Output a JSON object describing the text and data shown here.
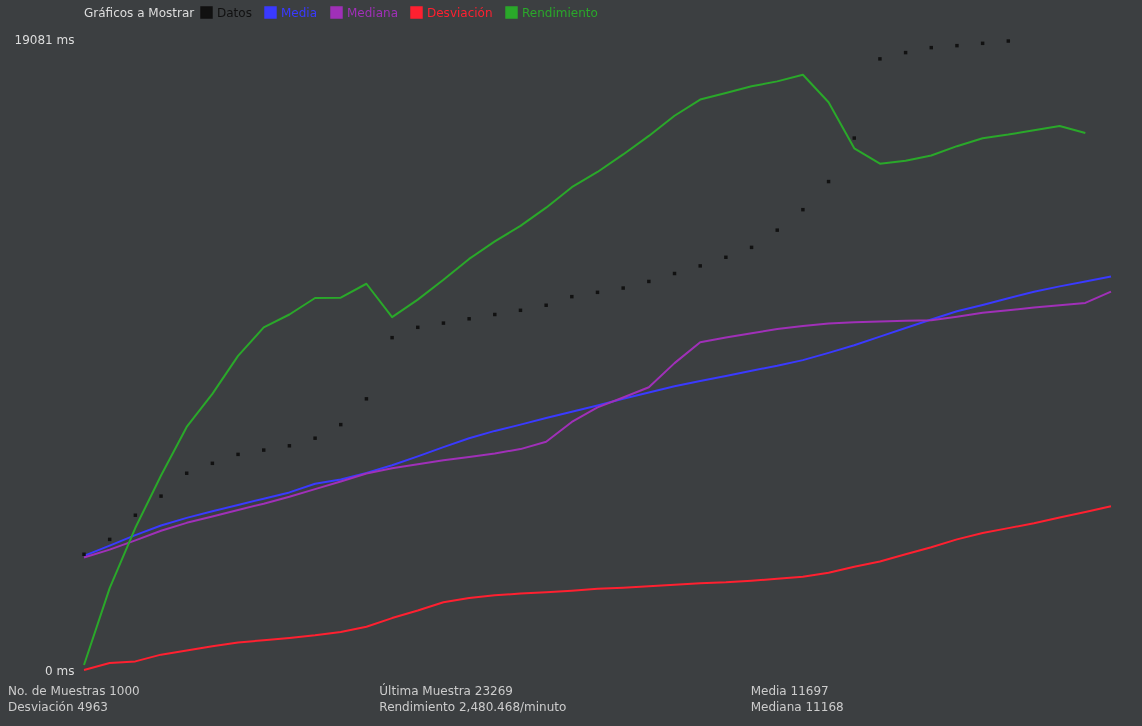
{
  "chart_data": {
    "type": "line",
    "legend_title": "Gráficos a Mostrar",
    "legend": "top",
    "categories": [
      null,
      null,
      null,
      null,
      null,
      null,
      null,
      null,
      null,
      null,
      null,
      null,
      null,
      null,
      null,
      null,
      null,
      null,
      null,
      null,
      null,
      null,
      null,
      null,
      null,
      null,
      null,
      null,
      null,
      null,
      null,
      null,
      null,
      null,
      null,
      null,
      null,
      null,
      null,
      null,
      null
    ],
    "ylim": [
      0,
      19081
    ],
    "yticks": [
      {
        "value": 0,
        "label": "0  ms"
      },
      {
        "value": 19081,
        "label": "19081  ms"
      }
    ],
    "tick_labels": "y",
    "grid": false,
    "series": [
      {
        "name": "Datos",
        "type": "scatter",
        "marker": "square",
        "color": "#111111",
        "values": [
          3500,
          3950,
          4680,
          5258,
          5950,
          6250,
          6520,
          6650,
          6780,
          7010,
          7420,
          8200,
          10050,
          10362,
          10490,
          10620,
          10750,
          10877,
          11030,
          11290,
          11420,
          11550,
          11750,
          11990,
          12220,
          12480,
          12780,
          13301,
          13920,
          14770,
          16085,
          18480,
          18670,
          18820,
          18880,
          18950,
          19020,
          null,
          null,
          null,
          null
        ]
      },
      {
        "name": "Media",
        "color": "#3a3aff",
        "values": [
          3450,
          3760,
          4080,
          4370,
          4600,
          4800,
          4990,
          5180,
          5370,
          5630,
          5760,
          5960,
          6190,
          6460,
          6740,
          7010,
          7230,
          7420,
          7620,
          7810,
          8000,
          8200,
          8390,
          8580,
          8740,
          8890,
          9050,
          9200,
          9370,
          9590,
          9820,
          10080,
          10340,
          10600,
          10850,
          11040,
          11240,
          11440,
          11600,
          11750,
          11900
        ]
      },
      {
        "name": "Mediana",
        "color": "#a030b8",
        "values": [
          3400,
          3640,
          3920,
          4210,
          4450,
          4640,
          4840,
          5030,
          5240,
          5470,
          5700,
          5940,
          6100,
          6220,
          6340,
          6440,
          6550,
          6680,
          6900,
          7500,
          7940,
          8240,
          8550,
          9280,
          9910,
          10052,
          10180,
          10310,
          10400,
          10480,
          10517,
          10540,
          10560,
          10575,
          10680,
          10800,
          10880,
          10960,
          11030,
          11100,
          11444
        ]
      },
      {
        "name": "Desviación",
        "color": "#ff2030",
        "values": [
          0,
          210,
          260,
          464,
          590,
          720,
          830,
          900,
          970,
          1050,
          1150,
          1310,
          1570,
          1800,
          2050,
          2180,
          2260,
          2310,
          2350,
          2400,
          2460,
          2490,
          2530,
          2580,
          2620,
          2650,
          2700,
          2760,
          2820,
          2940,
          3120,
          3280,
          3500,
          3710,
          3950,
          4140,
          4290,
          4440,
          4610,
          4780,
          4949
        ]
      },
      {
        "name": "Rendimiento",
        "color": "#2aa82a",
        "values": [
          150,
          2474,
          4300,
          5880,
          7350,
          8351,
          9500,
          10360,
          10750,
          11250,
          11260,
          11680,
          10671,
          11200,
          11800,
          12430,
          12960,
          13430,
          13980,
          14600,
          15060,
          15590,
          16150,
          16760,
          17250,
          17450,
          17650,
          17800,
          18000,
          17170,
          15776,
          15311,
          15400,
          15560,
          15840,
          16080,
          16190,
          16320,
          16450,
          16238,
          null
        ]
      }
    ],
    "annotations": [
      "No. de Muestras  1000",
      "Desviación  4963",
      "Última Muestra  23269",
      "Rendimiento  2,480.468/minuto",
      "Media  11697",
      "Mediana  11168"
    ]
  }
}
